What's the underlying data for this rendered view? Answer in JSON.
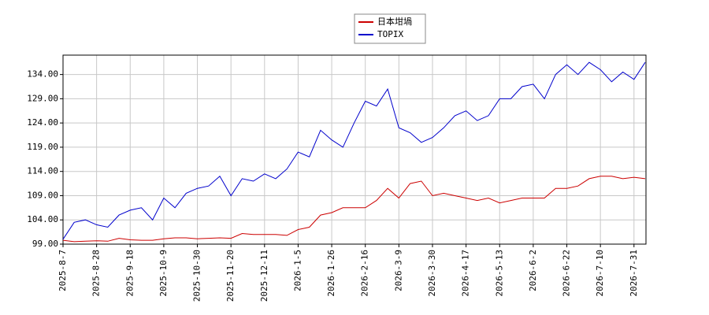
{
  "chart_data": {
    "type": "line",
    "categories": [
      "2025-8-7",
      null,
      null,
      "2025-8-28",
      null,
      null,
      "2025-9-18",
      null,
      null,
      "2025-10-9",
      null,
      null,
      "2025-10-30",
      null,
      null,
      "2025-11-20",
      null,
      null,
      "2025-12-11",
      null,
      null,
      "2026-1-5",
      null,
      null,
      "2026-1-26",
      null,
      null,
      "2026-2-16",
      null,
      null,
      "2026-3-9",
      null,
      null,
      "2026-3-30",
      null,
      null,
      "2026-4-17",
      null,
      null,
      "2026-5-13",
      null,
      null,
      "2026-6-2",
      null,
      null,
      "2026-6-22",
      null,
      null,
      "2026-7-10",
      null,
      null,
      "2026-7-31",
      null
    ],
    "series": [
      {
        "name": "日本坩堝",
        "color": "#cc0000",
        "values": [
          99.8,
          99.5,
          99.6,
          99.7,
          99.6,
          100.2,
          99.9,
          99.8,
          99.8,
          100.1,
          100.3,
          100.3,
          100.1,
          100.2,
          100.3,
          100.2,
          101.2,
          101,
          101,
          101,
          100.8,
          102,
          102.5,
          105,
          105.5,
          106.5,
          106.5,
          106.5,
          108,
          110.5,
          108.5,
          111.5,
          112,
          109,
          109.5,
          109,
          108.5,
          108,
          108.5,
          107.5,
          108,
          108.5,
          108.5,
          108.5,
          110.5,
          110.5,
          111,
          112.5,
          113,
          113,
          112.5,
          112.8,
          112.5
        ]
      },
      {
        "name": "TOPIX",
        "color": "#0000cc",
        "values": [
          100,
          103.5,
          104,
          103,
          102.5,
          105,
          106,
          106.5,
          104,
          108.5,
          106.5,
          109.5,
          110.5,
          111,
          113,
          109,
          112.5,
          112,
          113.5,
          112.5,
          114.5,
          118,
          117,
          122.5,
          120.5,
          119,
          124,
          128.5,
          127.5,
          131,
          123,
          122,
          120,
          121,
          123,
          125.5,
          126.5,
          124.5,
          125.5,
          129,
          129,
          131.5,
          132,
          129,
          134,
          136,
          134,
          136.5,
          135,
          132.5,
          134.5,
          133,
          136.5
        ]
      }
    ],
    "ylim": [
      99,
      138
    ],
    "yticks": [
      {
        "value": 99,
        "label": "99.00"
      },
      {
        "value": 104,
        "label": "104.00"
      },
      {
        "value": 109,
        "label": "109.00"
      },
      {
        "value": 114,
        "label": "114.00"
      },
      {
        "value": 119,
        "label": "119.00"
      },
      {
        "value": 124,
        "label": "124.00"
      },
      {
        "value": 129,
        "label": "129.00"
      },
      {
        "value": 134,
        "label": "134.00"
      }
    ],
    "grid": true,
    "legend": "top"
  }
}
